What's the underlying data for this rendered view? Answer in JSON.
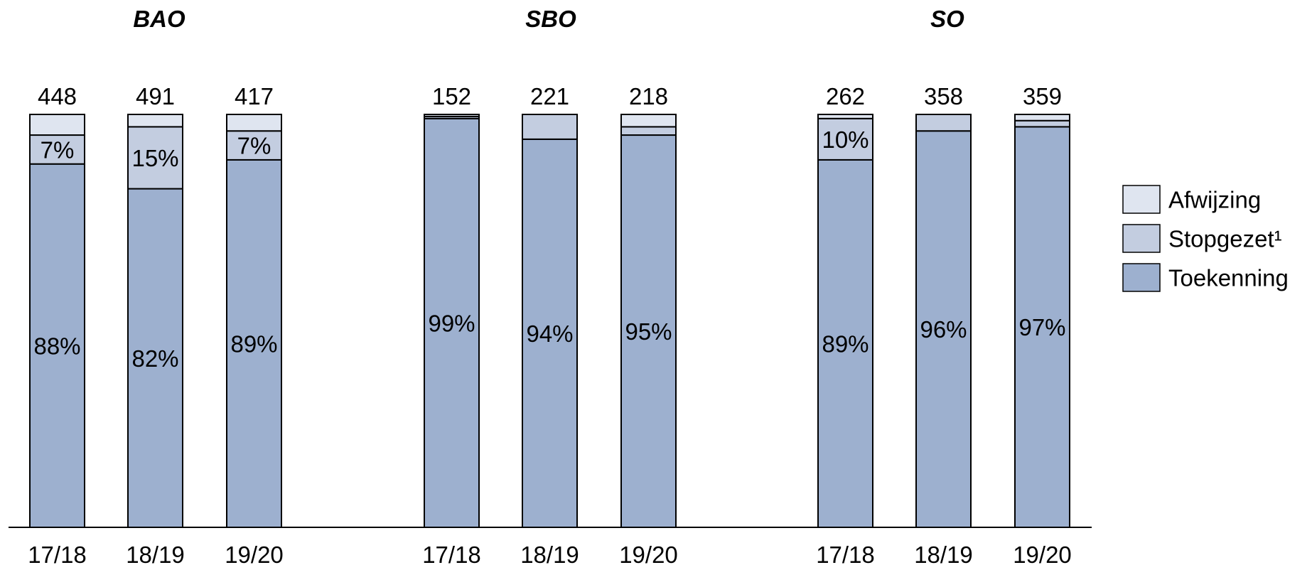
{
  "chart_data": {
    "type": "bar",
    "stacked": true,
    "normalized_percent": true,
    "colors": {
      "Toekenning": "#9db0cf",
      "Stopgezet": "#c3cde0",
      "Afwijzing": "#dfe5f0",
      "outline": "#000000"
    },
    "legend": {
      "placement": "right",
      "entries": [
        {
          "key": "Afwijzing",
          "label": "Afwijzing"
        },
        {
          "key": "Stopgezet",
          "label": "Stopgezet¹"
        },
        {
          "key": "Toekenning",
          "label": "Toekenning"
        }
      ]
    },
    "groups": [
      {
        "title": "BAO",
        "bars": [
          {
            "category": "17/18",
            "total": "448",
            "Toekenning": 88,
            "Stopgezet": 7,
            "Afwijzing": 5,
            "labels": {
              "Toekenning": "88%",
              "Stopgezet": "7%"
            }
          },
          {
            "category": "18/19",
            "total": "491",
            "Toekenning": 82,
            "Stopgezet": 15,
            "Afwijzing": 3,
            "labels": {
              "Toekenning": "82%",
              "Stopgezet": "15%"
            }
          },
          {
            "category": "19/20",
            "total": "417",
            "Toekenning": 89,
            "Stopgezet": 7,
            "Afwijzing": 4,
            "labels": {
              "Toekenning": "89%",
              "Stopgezet": "7%"
            }
          }
        ]
      },
      {
        "title": "SBO",
        "bars": [
          {
            "category": "17/18",
            "total": "152",
            "Toekenning": 99,
            "Stopgezet": 0.5,
            "Afwijzing": 0.5,
            "labels": {
              "Toekenning": "99%"
            }
          },
          {
            "category": "18/19",
            "total": "221",
            "Toekenning": 94,
            "Stopgezet": 6,
            "Afwijzing": 0,
            "labels": {
              "Toekenning": "94%"
            }
          },
          {
            "category": "19/20",
            "total": "218",
            "Toekenning": 95,
            "Stopgezet": 2,
            "Afwijzing": 3,
            "labels": {
              "Toekenning": "95%"
            }
          }
        ]
      },
      {
        "title": "SO",
        "bars": [
          {
            "category": "17/18",
            "total": "262",
            "Toekenning": 89,
            "Stopgezet": 10,
            "Afwijzing": 1,
            "labels": {
              "Toekenning": "89%",
              "Stopgezet": "10%"
            }
          },
          {
            "category": "18/19",
            "total": "358",
            "Toekenning": 96,
            "Stopgezet": 4,
            "Afwijzing": 0,
            "labels": {
              "Toekenning": "96%"
            }
          },
          {
            "category": "19/20",
            "total": "359",
            "Toekenning": 97,
            "Stopgezet": 1.5,
            "Afwijzing": 1.5,
            "labels": {
              "Toekenning": "97%"
            }
          }
        ]
      }
    ],
    "ylim": [
      0,
      100
    ]
  }
}
